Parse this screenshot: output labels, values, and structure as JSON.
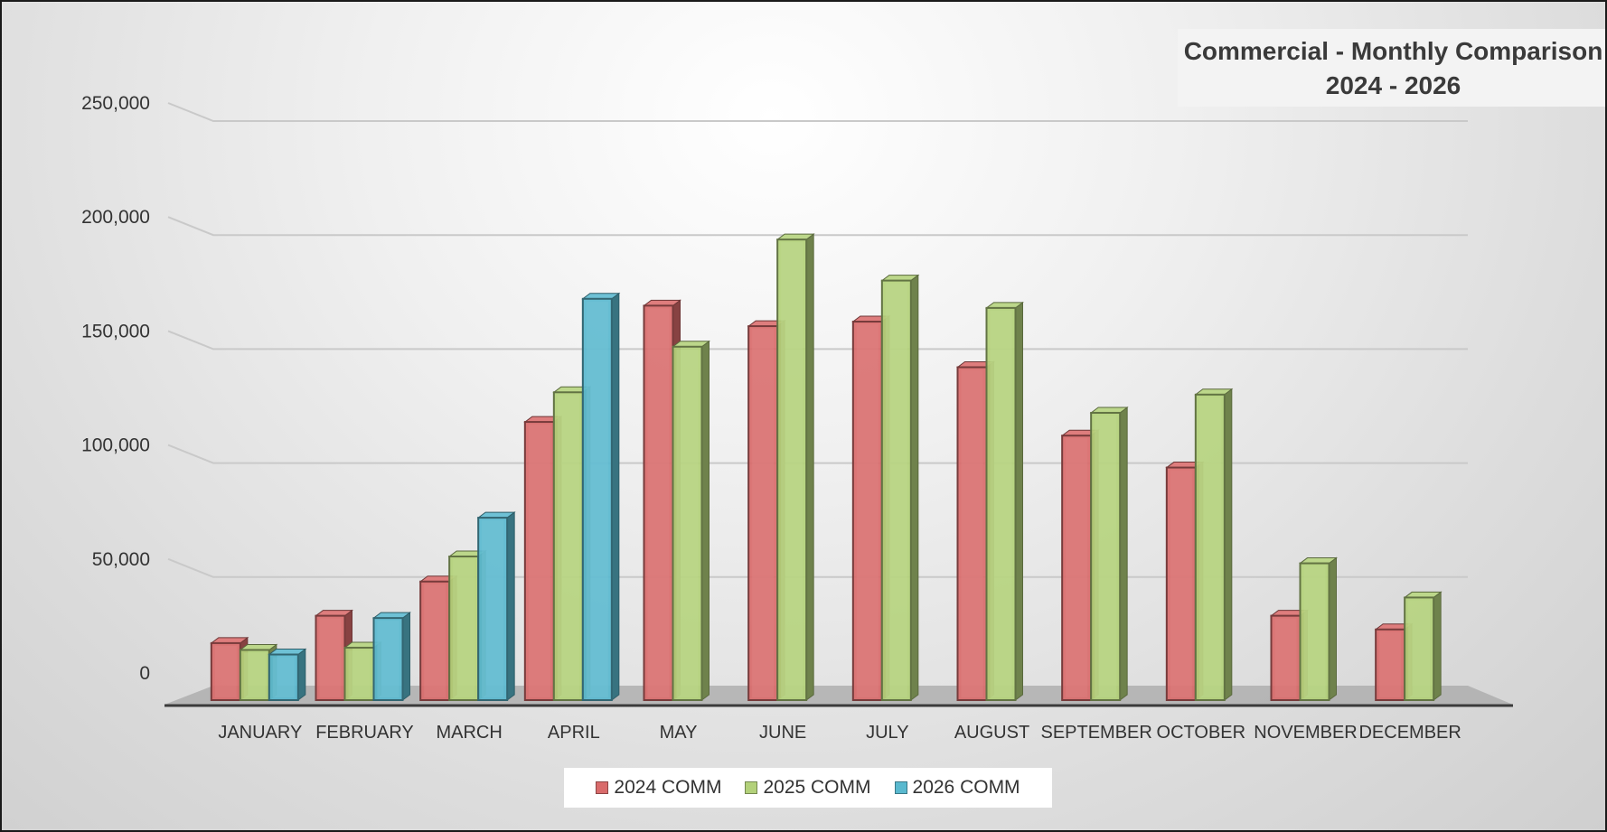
{
  "chart_data": {
    "type": "bar",
    "title": "Commercial - Monthly Comparison",
    "subtitle": "2024 - 2026",
    "categories": [
      "JANUARY",
      "FEBRUARY",
      "MARCH",
      "APRIL",
      "MAY",
      "JUNE",
      "JULY",
      "AUGUST",
      "SEPTEMBER",
      "OCTOBER",
      "NOVEMBER",
      "DECEMBER"
    ],
    "series": [
      {
        "name": "2024 COMM",
        "color": "#d96b6b",
        "values": [
          25000,
          37000,
          52000,
          122000,
          173000,
          164000,
          166000,
          146000,
          116000,
          102000,
          37000,
          31000
        ]
      },
      {
        "name": "2025 COMM",
        "color": "#b3d17a",
        "values": [
          22000,
          23000,
          63000,
          135000,
          155000,
          202000,
          184000,
          172000,
          126000,
          134000,
          60000,
          45000
        ]
      },
      {
        "name": "2026 COMM",
        "color": "#5ab9cf",
        "values": [
          20000,
          36000,
          80000,
          176000,
          null,
          null,
          null,
          null,
          null,
          null,
          null,
          null
        ]
      }
    ],
    "y_ticks": [
      "0",
      "50,000",
      "100,000",
      "150,000",
      "200,000",
      "250,000"
    ],
    "ylim": [
      0,
      250000
    ],
    "grid": true,
    "legend_position": "bottom",
    "style": "3d-clustered-column"
  }
}
